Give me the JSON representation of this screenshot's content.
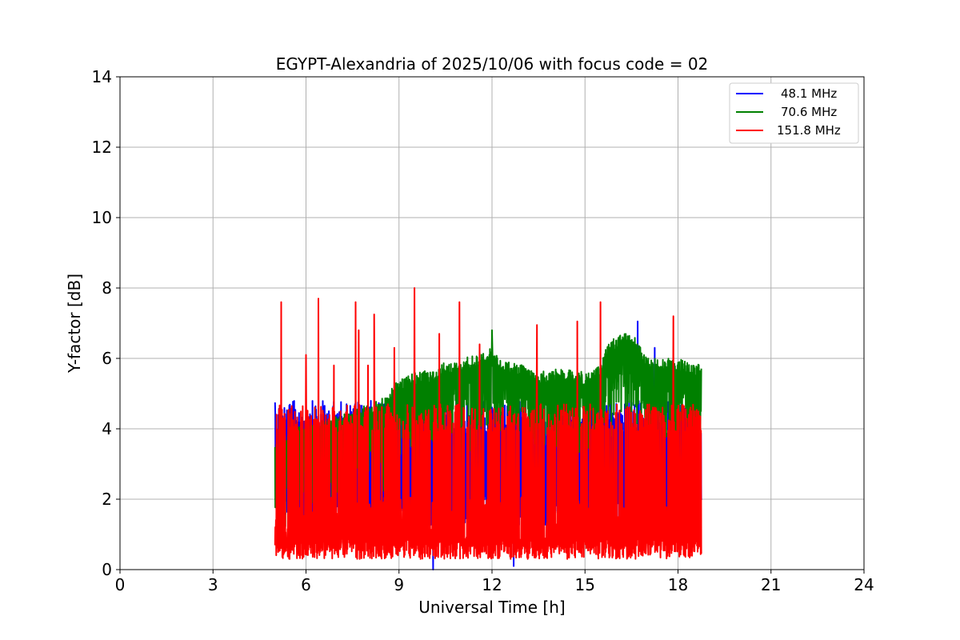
{
  "chart_data": {
    "type": "line",
    "title": "EGYPT-Alexandria of 2025/10/06 with focus code = 02",
    "xlabel": "Universal Time [h]",
    "ylabel": "Y-factor [dB]",
    "xlim": [
      0,
      24
    ],
    "ylim": [
      0,
      14
    ],
    "xticks": [
      0,
      3,
      6,
      9,
      12,
      15,
      18,
      21,
      24
    ],
    "yticks": [
      0,
      2,
      4,
      6,
      8,
      10,
      12,
      14
    ],
    "grid": true,
    "legend_position": "top-right",
    "x_range_of_data": [
      5.0,
      18.75
    ],
    "series": [
      {
        "name": "48.1 MHz",
        "color": "#0000ff",
        "baseline_low": 1.2,
        "baseline_high": 4.8,
        "spikes": [
          [
            5.0,
            4.75
          ],
          [
            10.1,
            0.0
          ],
          [
            12.7,
            0.1
          ],
          [
            16.7,
            7.05
          ],
          [
            17.25,
            6.3
          ]
        ]
      },
      {
        "name": "70.6 MHz",
        "color": "#008000",
        "envelope": [
          [
            5.0,
            3.6
          ],
          [
            5.5,
            4.0
          ],
          [
            6.5,
            4.2
          ],
          [
            7.5,
            4.5
          ],
          [
            8.5,
            4.9
          ],
          [
            9.0,
            5.4
          ],
          [
            9.5,
            5.6
          ],
          [
            10.0,
            5.7
          ],
          [
            10.5,
            5.9
          ],
          [
            11.0,
            6.0
          ],
          [
            11.5,
            6.1
          ],
          [
            12.0,
            6.3
          ],
          [
            12.5,
            5.9
          ],
          [
            13.0,
            5.8
          ],
          [
            13.5,
            5.6
          ],
          [
            14.0,
            5.7
          ],
          [
            14.5,
            5.7
          ],
          [
            15.0,
            5.6
          ],
          [
            15.5,
            5.8
          ],
          [
            15.75,
            6.5
          ],
          [
            16.5,
            6.8
          ],
          [
            17.0,
            6.0
          ],
          [
            17.5,
            6.0
          ],
          [
            18.0,
            6.0
          ],
          [
            18.75,
            5.8
          ]
        ],
        "spikes": [
          [
            12.0,
            6.8
          ]
        ]
      },
      {
        "name": "151.8 MHz",
        "color": "#ff0000",
        "baseline_low": 0.3,
        "baseline_high": 4.7,
        "spikes": [
          [
            5.2,
            7.6
          ],
          [
            6.0,
            6.1
          ],
          [
            6.4,
            7.7
          ],
          [
            6.9,
            5.8
          ],
          [
            7.6,
            7.6
          ],
          [
            7.7,
            6.8
          ],
          [
            8.0,
            5.8
          ],
          [
            8.2,
            7.25
          ],
          [
            8.85,
            6.3
          ],
          [
            9.5,
            8.0
          ],
          [
            10.3,
            6.7
          ],
          [
            10.95,
            7.6
          ],
          [
            11.6,
            6.4
          ],
          [
            13.45,
            6.95
          ],
          [
            14.75,
            7.05
          ],
          [
            15.5,
            7.6
          ],
          [
            17.85,
            7.2
          ]
        ]
      }
    ]
  }
}
